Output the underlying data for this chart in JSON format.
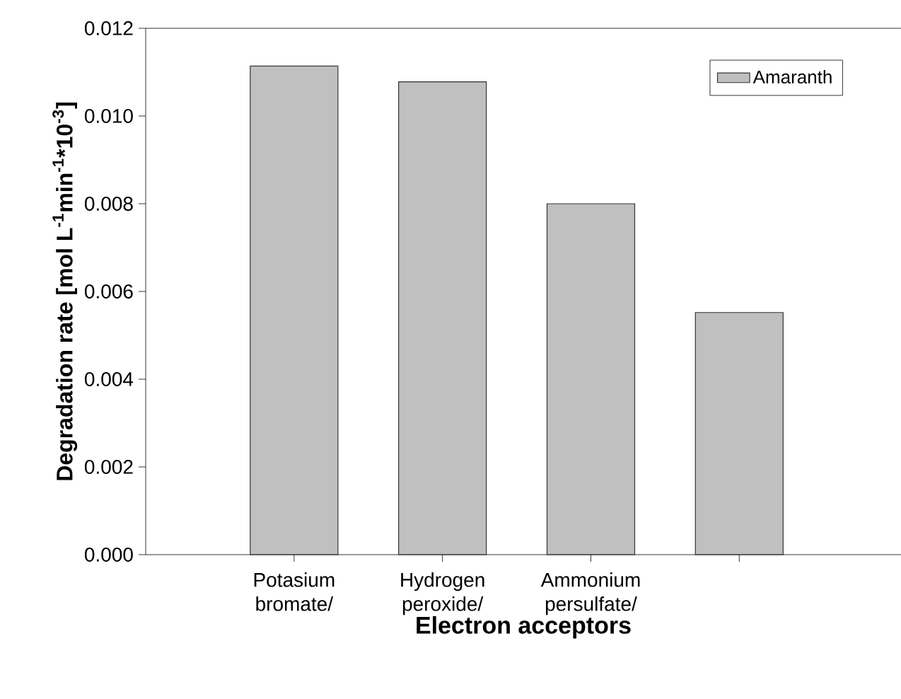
{
  "chart_data": {
    "type": "bar",
    "xlabel": "Electron acceptors",
    "ylabel": "Degradation rate [mol L$^{-1}$min$^{-1}$*10$^{-3}$]",
    "categories": [
      "Potasium bromate/",
      "Hydrogen peroxide/",
      "Ammonium persulfate/",
      null
    ],
    "series": [
      {
        "name": "Amaranth",
        "color": "#c0c0c0",
        "values": [
          0.01114,
          0.01078,
          0.008,
          0.00552
        ]
      }
    ],
    "ylim": [
      0,
      0.012
    ],
    "yticks": [
      {
        "value": 0,
        "label": "0.000"
      },
      {
        "value": 0.002,
        "label": "0.002"
      },
      {
        "value": 0.004,
        "label": "0.004"
      },
      {
        "value": 0.006,
        "label": "0.006"
      },
      {
        "value": 0.008,
        "label": "0.008"
      },
      {
        "value": 0.01,
        "label": "0.010"
      },
      {
        "value": 0.012,
        "label": "0.012"
      }
    ],
    "legend": "top right",
    "grid": false
  }
}
